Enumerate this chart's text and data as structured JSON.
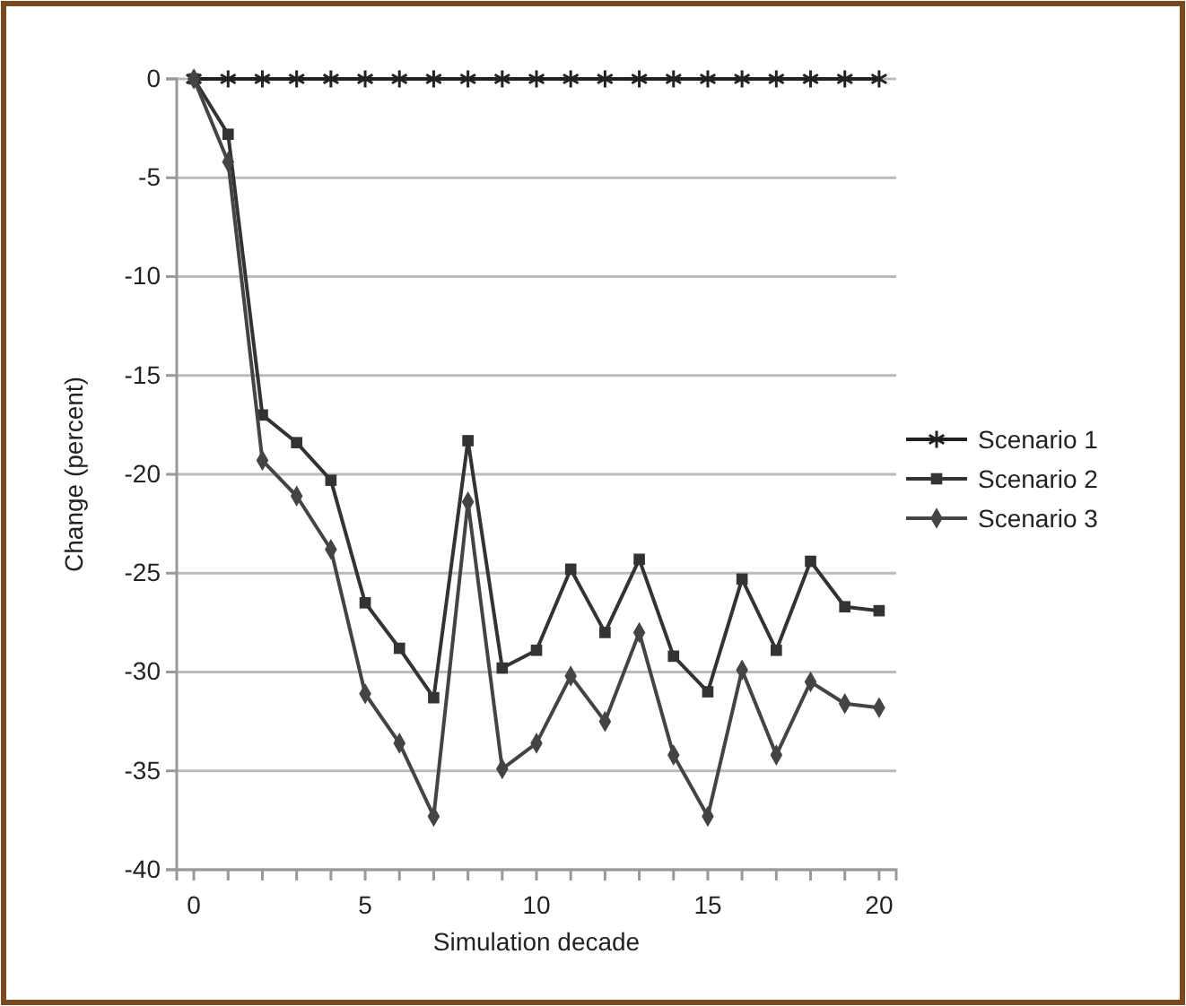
{
  "chart_data": {
    "type": "line",
    "xlabel": "Simulation decade",
    "ylabel": "Change (percent)",
    "x": [
      0,
      1,
      2,
      3,
      4,
      5,
      6,
      7,
      8,
      9,
      10,
      11,
      12,
      13,
      14,
      15,
      16,
      17,
      18,
      19,
      20
    ],
    "xlim": [
      -0.5,
      20.5
    ],
    "xticks": [
      0,
      {
        "value": 1,
        "label": null
      },
      {
        "value": 2,
        "label": null
      },
      {
        "value": 3,
        "label": null
      },
      {
        "value": 4,
        "label": null
      },
      5,
      {
        "value": 6,
        "label": null
      },
      {
        "value": 7,
        "label": null
      },
      {
        "value": 8,
        "label": null
      },
      {
        "value": 9,
        "label": null
      },
      10,
      {
        "value": 11,
        "label": null
      },
      {
        "value": 12,
        "label": null
      },
      {
        "value": 13,
        "label": null
      },
      {
        "value": 14,
        "label": null
      },
      15,
      {
        "value": 16,
        "label": null
      },
      {
        "value": 17,
        "label": null
      },
      {
        "value": 18,
        "label": null
      },
      {
        "value": 19,
        "label": null
      },
      20
    ],
    "ylim": [
      -40,
      0
    ],
    "yticks": [
      -40,
      -35,
      -30,
      -25,
      -20,
      -15,
      -10,
      -5,
      0
    ],
    "grid": "y",
    "legend": "right",
    "series": [
      {
        "name": "Scenario 1",
        "color": "#222222",
        "marker": "cross",
        "values": [
          0,
          0,
          0,
          0,
          0,
          0,
          0,
          0,
          0,
          0,
          0,
          0,
          0,
          0,
          0,
          0,
          0,
          0,
          0,
          0,
          0
        ]
      },
      {
        "name": "Scenario 2",
        "color": "#333333",
        "marker": "square",
        "values": [
          0,
          -2.8,
          -17,
          -18.4,
          -20.3,
          -26.5,
          -28.8,
          -31.3,
          -18.3,
          -29.8,
          -28.9,
          -24.8,
          -28,
          -24.3,
          -29.2,
          -31,
          -25.3,
          -28.9,
          -24.4,
          -26.7,
          -26.9
        ]
      },
      {
        "name": "Scenario 3",
        "color": "#444444",
        "marker": "diamond",
        "values": [
          0,
          -4.2,
          -19.3,
          -21.1,
          -23.8,
          -31.1,
          -33.6,
          -37.3,
          -21.4,
          -34.9,
          -33.6,
          -30.2,
          -32.5,
          -28,
          -34.2,
          -37.3,
          -29.9,
          -34.2,
          -30.5,
          -31.6,
          -31.8
        ]
      }
    ]
  }
}
